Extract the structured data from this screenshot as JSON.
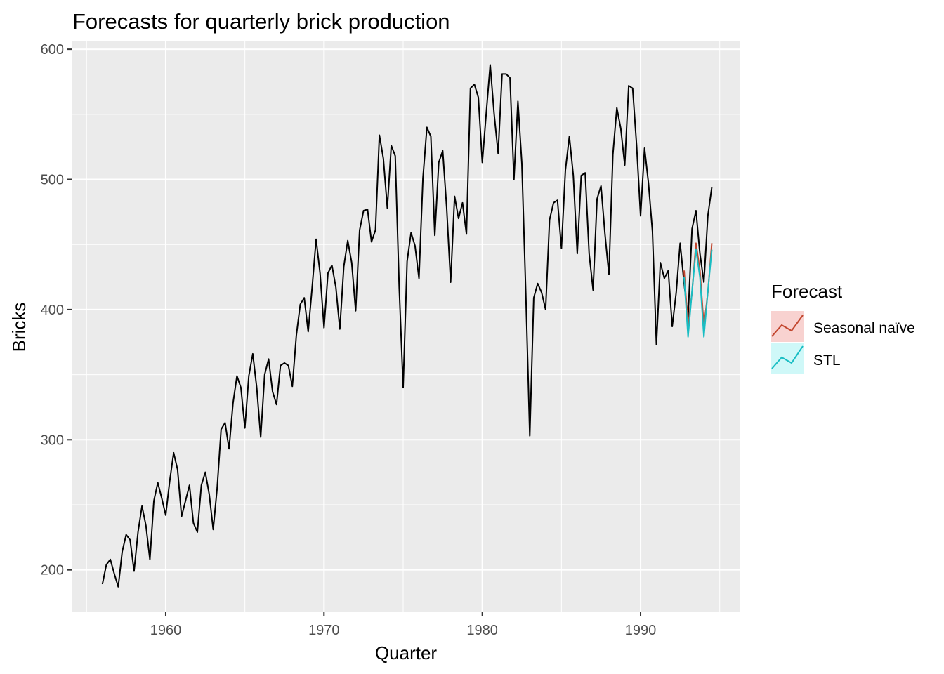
{
  "chart_data": {
    "type": "line",
    "title": "Forecasts for quarterly brick production",
    "xlabel": "Quarter",
    "ylabel": "Bricks",
    "xlim": [
      1954.1,
      1996.3
    ],
    "ylim": [
      168,
      606
    ],
    "x_ticks": [
      1960,
      1970,
      1980,
      1990
    ],
    "x_tick_labels": [
      "1960",
      "1970",
      "1980",
      "1990"
    ],
    "y_ticks": [
      200,
      300,
      400,
      500,
      600
    ],
    "y_tick_labels": [
      "200",
      "300",
      "400",
      "500",
      "600"
    ],
    "grid": true,
    "legend": {
      "title": "Forecast",
      "position": "right",
      "entries": [
        {
          "label": "Seasonal naïve",
          "color": "#c2462e",
          "fill": "#f8d2d0"
        },
        {
          "label": "STL",
          "color": "#18bdc3",
          "fill": "#cff8f8"
        }
      ]
    },
    "series": [
      {
        "name": "",
        "color": "#000000",
        "x_start": 1956.0,
        "step": 0.25,
        "values": [
          189,
          204,
          208,
          197,
          187,
          214,
          227,
          223,
          199,
          229,
          249,
          234,
          208,
          253,
          267,
          255,
          242,
          268,
          290,
          277,
          241,
          253,
          265,
          236,
          229,
          265,
          275,
          258,
          231,
          263,
          308,
          313,
          293,
          328,
          349,
          340,
          309,
          349,
          366,
          340,
          302,
          350,
          362,
          337,
          327,
          357,
          359,
          357,
          341,
          380,
          404,
          409,
          383,
          417,
          454,
          428,
          386,
          428,
          434,
          417,
          385,
          433,
          453,
          436,
          399,
          461,
          476,
          477,
          452,
          461,
          534,
          516,
          478,
          526,
          518,
          417,
          340,
          437,
          459,
          449,
          424,
          501,
          540,
          533,
          457,
          513,
          522,
          478,
          421,
          487,
          470,
          482,
          458,
          570,
          573,
          563,
          513,
          551,
          588,
          550,
          520,
          581,
          581,
          578,
          500,
          560,
          512,
          412,
          303,
          409,
          420,
          413,
          400,
          469,
          482,
          484,
          447,
          507,
          533,
          503,
          443,
          503,
          505,
          443,
          415,
          485,
          495,
          458,
          427,
          519,
          555,
          539,
          511,
          572,
          570,
          526,
          472,
          524,
          497,
          460,
          373,
          436,
          424,
          430,
          387,
          413,
          451,
          420,
          394,
          462,
          476,
          443,
          421,
          472,
          494
        ]
      },
      {
        "name": "Seasonal naïve",
        "color": "#c2462e",
        "x_start": 1992.75,
        "step": 0.25,
        "values": [
          430,
          387,
          413,
          451,
          430,
          387,
          413,
          451
        ]
      },
      {
        "name": "STL",
        "color": "#18bdc3",
        "x_start": 1992.75,
        "step": 0.25,
        "values": [
          425,
          379,
          414,
          446,
          425,
          379,
          414,
          446
        ]
      }
    ]
  }
}
